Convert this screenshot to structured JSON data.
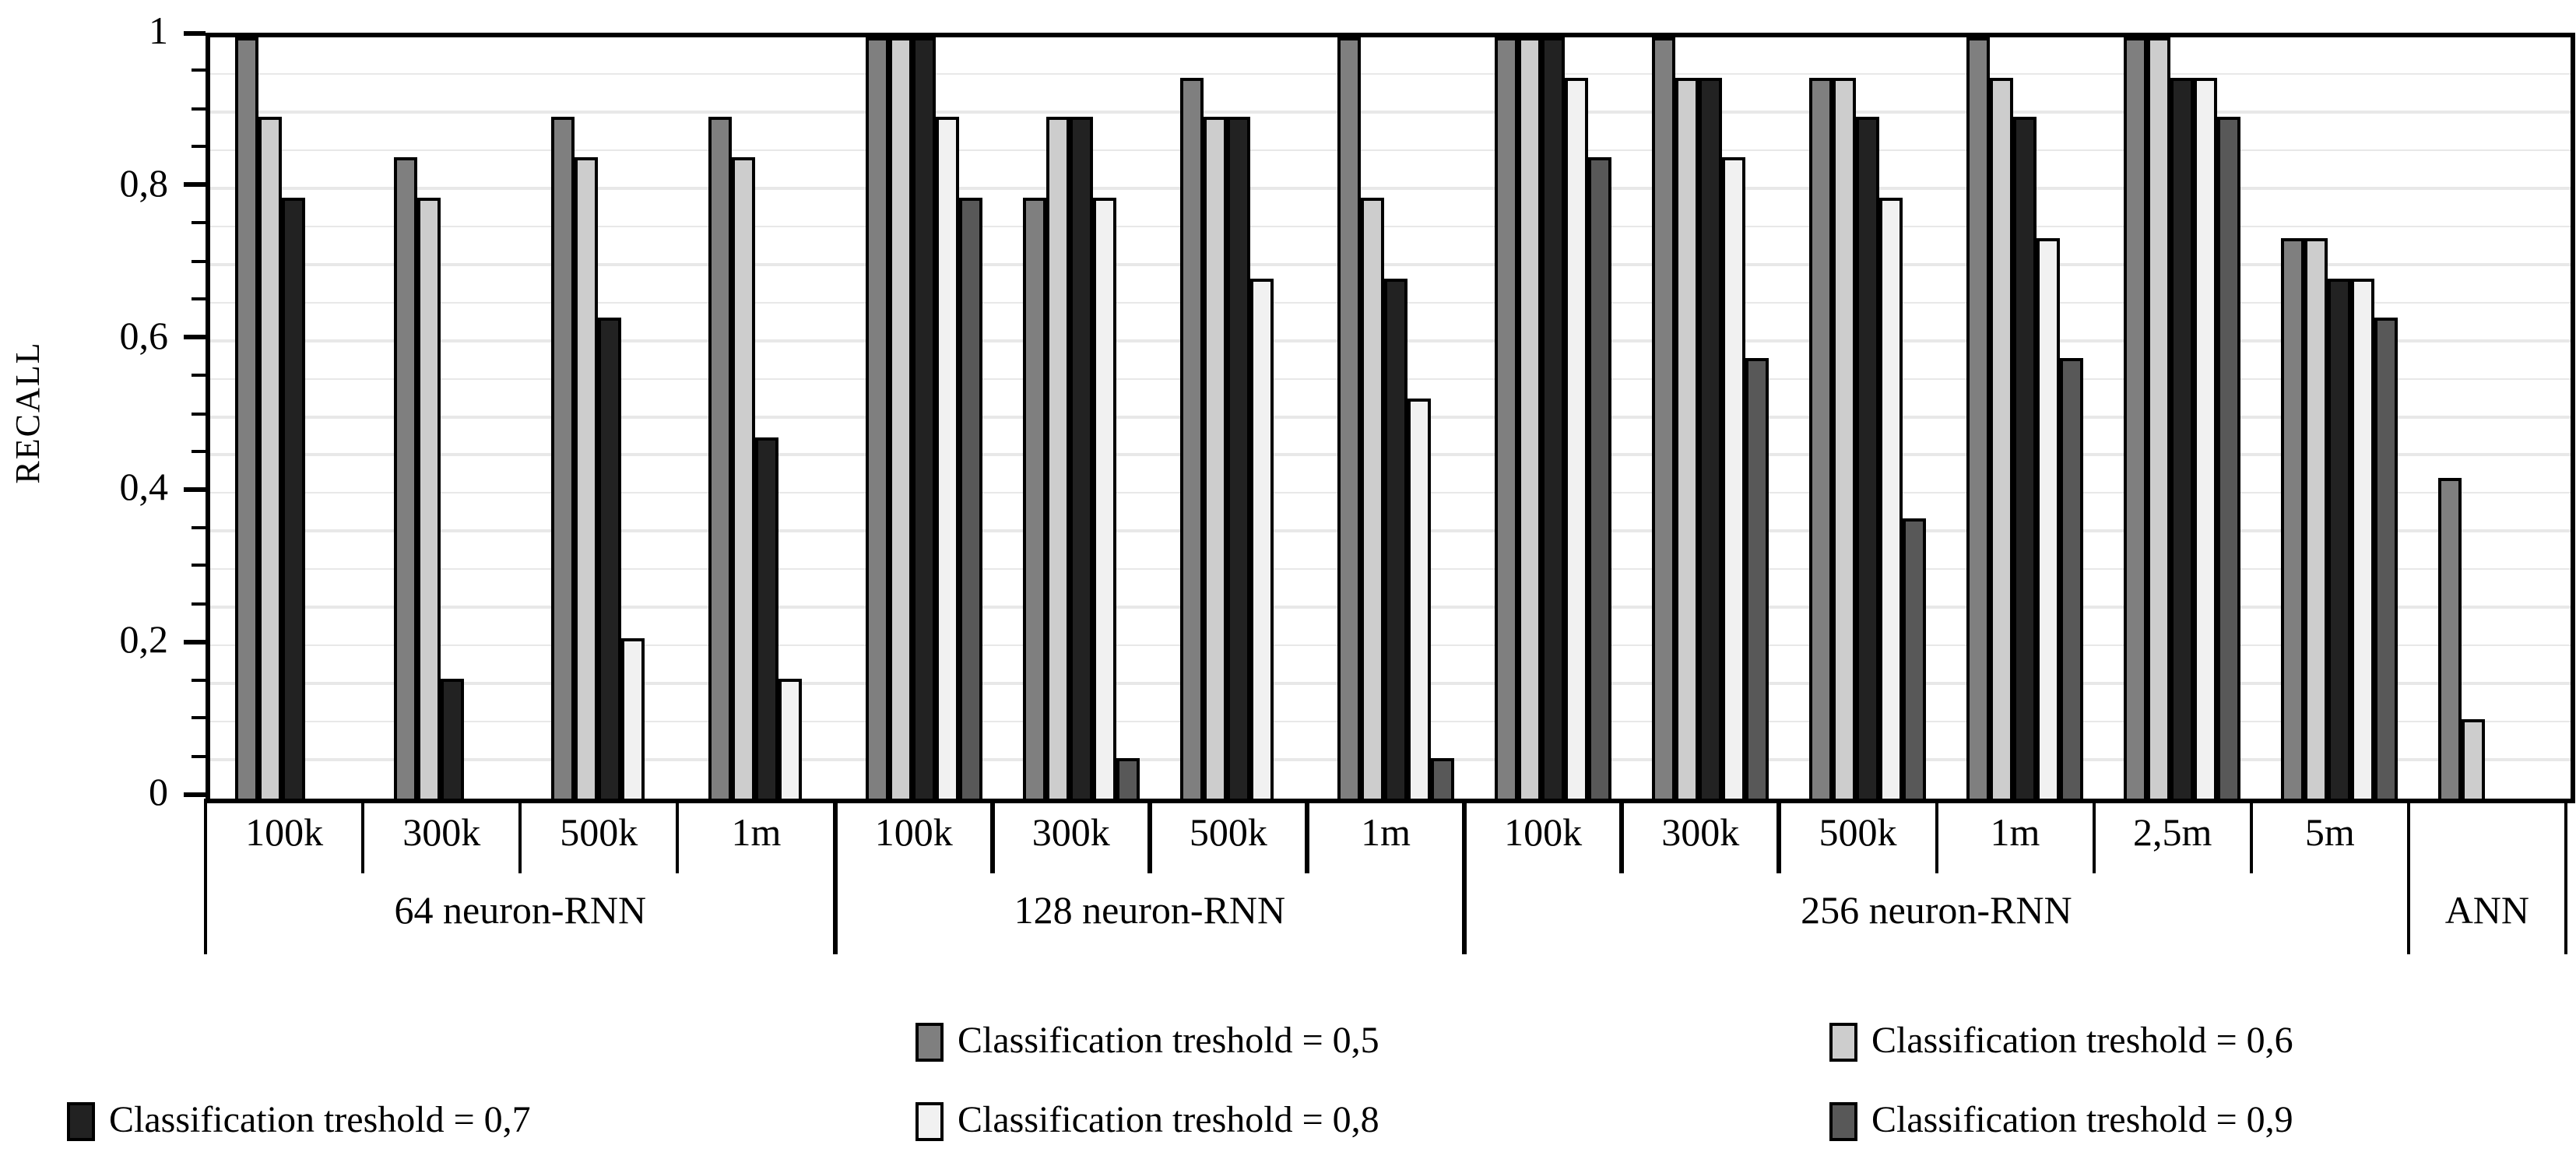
{
  "chart_data": {
    "type": "bar",
    "title": "",
    "ylabel": "RECALL",
    "xlabel": "",
    "ylim": [
      0,
      1
    ],
    "grid": "minor horizontal gridlines every 0.05",
    "legend_position": "below chart, two rows, three columns",
    "y_ticks": [
      {
        "label": "1",
        "value": 1
      },
      {
        "label": "0,8",
        "value": 0.8
      },
      {
        "label": "0,6",
        "value": 0.6
      },
      {
        "label": "0,4",
        "value": 0.4
      },
      {
        "label": "0,2",
        "value": 0.2
      },
      {
        "label": "0",
        "value": 0
      }
    ],
    "y_minor_step": 0.05,
    "series": [
      {
        "key": "t05",
        "label": "Classification treshold = 0,5",
        "color": "#7f7f7f"
      },
      {
        "key": "t06",
        "label": "Classification treshold = 0,6",
        "color": "#cdcdcd"
      },
      {
        "key": "t07",
        "label": "Classification treshold = 0,7",
        "color": "#222222"
      },
      {
        "key": "t08",
        "label": "Classification treshold = 0,8",
        "color": "#f1f1f1"
      },
      {
        "key": "t09",
        "label": "Classification treshold = 0,9",
        "color": "#585858"
      }
    ],
    "groups": [
      {
        "label": "64 neuron-RNN",
        "columns": [
          {
            "label": "100k",
            "values": [
              1.0,
              0.895,
              0.789,
              0,
              0
            ]
          },
          {
            "label": "300k",
            "values": [
              0.842,
              0.789,
              0.158,
              0,
              0
            ]
          },
          {
            "label": "500k",
            "values": [
              0.895,
              0.842,
              0.632,
              0.211,
              0
            ]
          },
          {
            "label": "1m",
            "values": [
              0.895,
              0.842,
              0.474,
              0.158,
              0
            ]
          }
        ]
      },
      {
        "label": "128 neuron-RNN",
        "columns": [
          {
            "label": "100k",
            "values": [
              1.0,
              1.0,
              1.0,
              0.895,
              0.789
            ]
          },
          {
            "label": "300k",
            "values": [
              0.789,
              0.895,
              0.895,
              0.789,
              0.053
            ]
          },
          {
            "label": "500k",
            "values": [
              0.947,
              0.895,
              0.895,
              0.684,
              0
            ]
          },
          {
            "label": "1m",
            "values": [
              1.0,
              0.789,
              0.684,
              0.526,
              0.053
            ]
          }
        ]
      },
      {
        "label": "256 neuron-RNN",
        "columns": [
          {
            "label": "100k",
            "values": [
              1.0,
              1.0,
              1.0,
              0.947,
              0.842
            ]
          },
          {
            "label": "300k",
            "values": [
              1.0,
              0.947,
              0.947,
              0.842,
              0.579
            ]
          },
          {
            "label": "500k",
            "values": [
              0.947,
              0.947,
              0.895,
              0.789,
              0.368
            ]
          },
          {
            "label": "1m",
            "values": [
              1.0,
              0.947,
              0.895,
              0.737,
              0.579
            ]
          },
          {
            "label": "2,5m",
            "values": [
              1.0,
              1.0,
              0.947,
              0.947,
              0.895
            ]
          },
          {
            "label": "5m",
            "values": [
              0.737,
              0.737,
              0.684,
              0.684,
              0.632
            ]
          }
        ]
      },
      {
        "label": "ANN",
        "columns": [
          {
            "label": "",
            "values": [
              0.421,
              0.105,
              0,
              0,
              0
            ]
          }
        ]
      }
    ],
    "legend_rows": [
      [
        {
          "series": 0,
          "col": 1
        },
        {
          "series": 1,
          "col": 2
        }
      ],
      [
        {
          "series": 2,
          "col": 0
        },
        {
          "series": 3,
          "col": 1
        },
        {
          "series": 4,
          "col": 2
        }
      ]
    ]
  }
}
